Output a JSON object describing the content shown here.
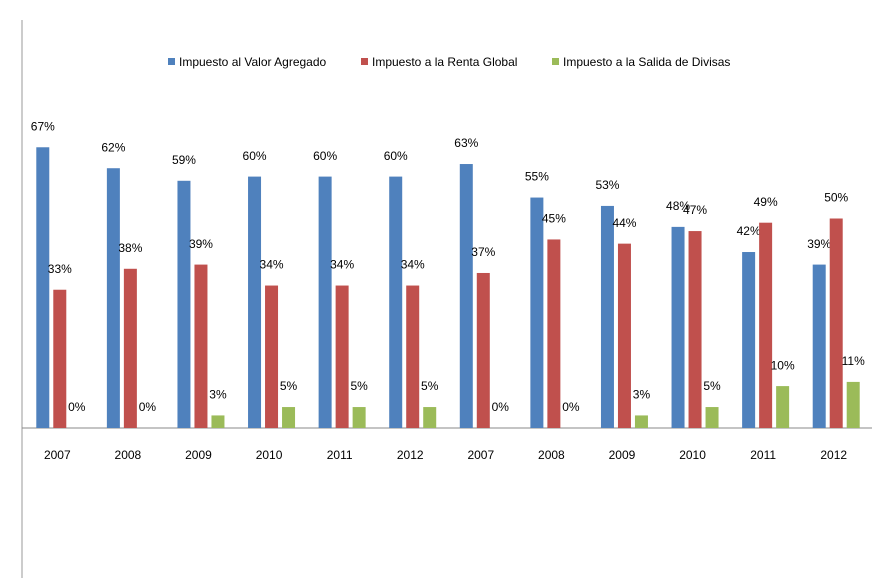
{
  "chart_data": {
    "type": "bar",
    "categories": [
      "2007",
      "2008",
      "2009",
      "2010",
      "2011",
      "2012",
      "2007",
      "2008",
      "2009",
      "2010",
      "2011",
      "2012"
    ],
    "series": [
      {
        "name": "Impuesto al Valor Agregado",
        "color": "#4f81bd",
        "values": [
          67,
          62,
          59,
          60,
          60,
          60,
          63,
          55,
          53,
          48,
          42,
          39
        ],
        "value_labels": [
          "67%",
          "62%",
          "59%",
          "60%",
          "60%",
          "60%",
          "63%",
          "55%",
          "53%",
          "48%",
          "42%",
          "39%"
        ]
      },
      {
        "name": "Impuesto a la Renta Global",
        "color": "#c0504d",
        "values": [
          33,
          38,
          39,
          34,
          34,
          34,
          37,
          45,
          44,
          47,
          49,
          50
        ],
        "value_labels": [
          "33%",
          "38%",
          "39%",
          "34%",
          "34%",
          "34%",
          "37%",
          "45%",
          "44%",
          "47%",
          "49%",
          "50%"
        ]
      },
      {
        "name": "Impuesto a la Salida de Divisas",
        "color": "#9bbb59",
        "values": [
          0,
          0,
          3,
          5,
          5,
          5,
          0,
          0,
          3,
          5,
          10,
          11
        ],
        "value_labels": [
          "0%",
          "0%",
          "3%",
          "5%",
          "5%",
          "5%",
          "0%",
          "0%",
          "3%",
          "5%",
          "10%",
          "11%"
        ]
      }
    ]
  }
}
